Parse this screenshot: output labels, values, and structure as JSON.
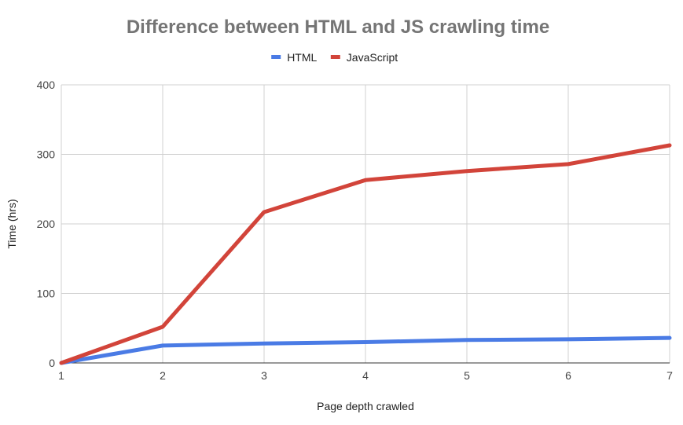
{
  "chart_data": {
    "type": "line",
    "title": "Difference between HTML and JS crawling time",
    "xlabel": "Page depth crawled",
    "ylabel": "Time (hrs)",
    "x": [
      1,
      2,
      3,
      4,
      5,
      6,
      7
    ],
    "xlim": [
      1,
      7
    ],
    "ylim": [
      0,
      400
    ],
    "yticks": [
      0,
      100,
      200,
      300,
      400
    ],
    "grid": true,
    "legend_position": "top",
    "series": [
      {
        "name": "HTML",
        "color": "#4a7be5",
        "values": [
          0,
          25,
          28,
          30,
          33,
          34,
          36
        ]
      },
      {
        "name": "JavaScript",
        "color": "#d2443a",
        "values": [
          0,
          52,
          217,
          263,
          276,
          286,
          313
        ]
      }
    ]
  }
}
